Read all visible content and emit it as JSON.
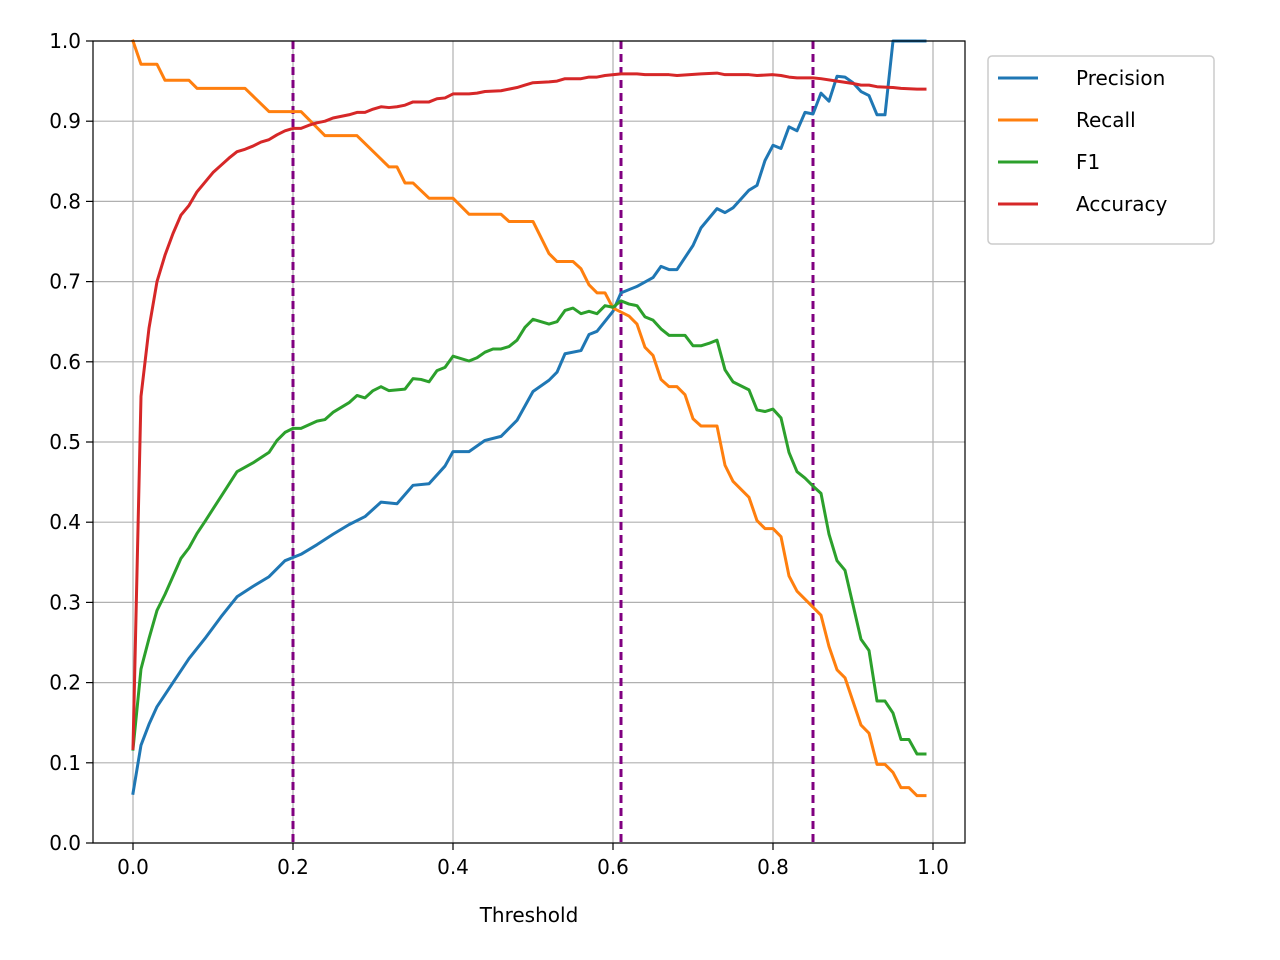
{
  "chart_data": {
    "type": "line",
    "title": "",
    "xlabel": "Threshold",
    "ylabel": "",
    "xlim": [
      -0.05,
      1.04
    ],
    "ylim": [
      0.0,
      1.0
    ],
    "grid": true,
    "legend_position": "outside-top-right",
    "x_ticks": [
      0.0,
      0.2,
      0.4,
      0.6,
      0.8,
      1.0
    ],
    "x_tick_labels": [
      "0.0",
      "0.2",
      "0.4",
      "0.6",
      "0.8",
      "1.0"
    ],
    "y_ticks": [
      0.0,
      0.1,
      0.2,
      0.3,
      0.4,
      0.5,
      0.6,
      0.7,
      0.8,
      0.9,
      1.0
    ],
    "y_tick_labels": [
      "0.0",
      "0.1",
      "0.2",
      "0.3",
      "0.4",
      "0.5",
      "0.6",
      "0.7",
      "0.8",
      "0.9",
      "1.0"
    ],
    "vertical_lines": {
      "x": [
        0.2,
        0.61,
        0.85
      ],
      "color": "#800080",
      "style": "dashed"
    },
    "series": [
      {
        "name": "Precision",
        "color": "#1f77b4",
        "points": [
          [
            0.0,
            0.062
          ],
          [
            0.01,
            0.122
          ],
          [
            0.02,
            0.148
          ],
          [
            0.03,
            0.17
          ],
          [
            0.05,
            0.2
          ],
          [
            0.07,
            0.23
          ],
          [
            0.09,
            0.255
          ],
          [
            0.11,
            0.282
          ],
          [
            0.13,
            0.307
          ],
          [
            0.15,
            0.32
          ],
          [
            0.17,
            0.332
          ],
          [
            0.19,
            0.352
          ],
          [
            0.21,
            0.36
          ],
          [
            0.23,
            0.372
          ],
          [
            0.25,
            0.385
          ],
          [
            0.27,
            0.397
          ],
          [
            0.29,
            0.407
          ],
          [
            0.31,
            0.425
          ],
          [
            0.33,
            0.423
          ],
          [
            0.35,
            0.446
          ],
          [
            0.37,
            0.448
          ],
          [
            0.39,
            0.47
          ],
          [
            0.4,
            0.488
          ],
          [
            0.42,
            0.488
          ],
          [
            0.44,
            0.502
          ],
          [
            0.46,
            0.507
          ],
          [
            0.48,
            0.527
          ],
          [
            0.5,
            0.563
          ],
          [
            0.52,
            0.577
          ],
          [
            0.53,
            0.587
          ],
          [
            0.54,
            0.61
          ],
          [
            0.56,
            0.614
          ],
          [
            0.57,
            0.634
          ],
          [
            0.58,
            0.638
          ],
          [
            0.6,
            0.663
          ],
          [
            0.61,
            0.686
          ],
          [
            0.63,
            0.694
          ],
          [
            0.65,
            0.705
          ],
          [
            0.66,
            0.719
          ],
          [
            0.67,
            0.715
          ],
          [
            0.68,
            0.715
          ],
          [
            0.7,
            0.745
          ],
          [
            0.71,
            0.767
          ],
          [
            0.73,
            0.791
          ],
          [
            0.74,
            0.786
          ],
          [
            0.75,
            0.792
          ],
          [
            0.77,
            0.814
          ],
          [
            0.78,
            0.82
          ],
          [
            0.79,
            0.851
          ],
          [
            0.8,
            0.87
          ],
          [
            0.81,
            0.866
          ],
          [
            0.82,
            0.893
          ],
          [
            0.83,
            0.888
          ],
          [
            0.84,
            0.911
          ],
          [
            0.85,
            0.909
          ],
          [
            0.86,
            0.935
          ],
          [
            0.87,
            0.925
          ],
          [
            0.88,
            0.956
          ],
          [
            0.89,
            0.955
          ],
          [
            0.9,
            0.948
          ],
          [
            0.91,
            0.937
          ],
          [
            0.92,
            0.932
          ],
          [
            0.93,
            0.908
          ],
          [
            0.94,
            0.908
          ],
          [
            0.95,
            1.0
          ],
          [
            0.96,
            1.0
          ],
          [
            0.97,
            1.0
          ],
          [
            0.98,
            1.0
          ],
          [
            0.99,
            1.0
          ]
        ]
      },
      {
        "name": "Recall",
        "color": "#ff7f0e",
        "points": [
          [
            0.0,
            1.0
          ],
          [
            0.01,
            0.971
          ],
          [
            0.03,
            0.971
          ],
          [
            0.04,
            0.951
          ],
          [
            0.07,
            0.951
          ],
          [
            0.08,
            0.941
          ],
          [
            0.14,
            0.941
          ],
          [
            0.17,
            0.912
          ],
          [
            0.21,
            0.912
          ],
          [
            0.24,
            0.882
          ],
          [
            0.28,
            0.882
          ],
          [
            0.32,
            0.843
          ],
          [
            0.33,
            0.843
          ],
          [
            0.34,
            0.823
          ],
          [
            0.35,
            0.823
          ],
          [
            0.37,
            0.804
          ],
          [
            0.4,
            0.804
          ],
          [
            0.42,
            0.784
          ],
          [
            0.46,
            0.784
          ],
          [
            0.47,
            0.775
          ],
          [
            0.5,
            0.775
          ],
          [
            0.52,
            0.735
          ],
          [
            0.53,
            0.725
          ],
          [
            0.55,
            0.725
          ],
          [
            0.56,
            0.716
          ],
          [
            0.57,
            0.696
          ],
          [
            0.58,
            0.686
          ],
          [
            0.59,
            0.686
          ],
          [
            0.6,
            0.667
          ],
          [
            0.62,
            0.657
          ],
          [
            0.63,
            0.647
          ],
          [
            0.64,
            0.618
          ],
          [
            0.65,
            0.608
          ],
          [
            0.66,
            0.578
          ],
          [
            0.67,
            0.569
          ],
          [
            0.68,
            0.569
          ],
          [
            0.69,
            0.559
          ],
          [
            0.7,
            0.529
          ],
          [
            0.71,
            0.52
          ],
          [
            0.73,
            0.52
          ],
          [
            0.74,
            0.471
          ],
          [
            0.75,
            0.451
          ],
          [
            0.77,
            0.431
          ],
          [
            0.78,
            0.402
          ],
          [
            0.79,
            0.392
          ],
          [
            0.8,
            0.392
          ],
          [
            0.81,
            0.382
          ],
          [
            0.82,
            0.333
          ],
          [
            0.83,
            0.314
          ],
          [
            0.85,
            0.294
          ],
          [
            0.86,
            0.284
          ],
          [
            0.87,
            0.245
          ],
          [
            0.88,
            0.216
          ],
          [
            0.89,
            0.206
          ],
          [
            0.91,
            0.147
          ],
          [
            0.92,
            0.137
          ],
          [
            0.93,
            0.098
          ],
          [
            0.94,
            0.098
          ],
          [
            0.95,
            0.088
          ],
          [
            0.96,
            0.069
          ],
          [
            0.97,
            0.069
          ],
          [
            0.98,
            0.059
          ],
          [
            0.99,
            0.059
          ]
        ]
      },
      {
        "name": "F1",
        "color": "#2ca02c",
        "points": [
          [
            0.0,
            0.117
          ],
          [
            0.01,
            0.217
          ],
          [
            0.02,
            0.255
          ],
          [
            0.03,
            0.29
          ],
          [
            0.04,
            0.31
          ],
          [
            0.06,
            0.355
          ],
          [
            0.07,
            0.368
          ],
          [
            0.08,
            0.386
          ],
          [
            0.09,
            0.401
          ],
          [
            0.11,
            0.432
          ],
          [
            0.13,
            0.463
          ],
          [
            0.15,
            0.474
          ],
          [
            0.17,
            0.487
          ],
          [
            0.18,
            0.502
          ],
          [
            0.19,
            0.512
          ],
          [
            0.2,
            0.517
          ],
          [
            0.21,
            0.517
          ],
          [
            0.23,
            0.526
          ],
          [
            0.24,
            0.528
          ],
          [
            0.25,
            0.537
          ],
          [
            0.27,
            0.549
          ],
          [
            0.28,
            0.558
          ],
          [
            0.29,
            0.555
          ],
          [
            0.3,
            0.564
          ],
          [
            0.31,
            0.569
          ],
          [
            0.32,
            0.564
          ],
          [
            0.34,
            0.566
          ],
          [
            0.35,
            0.579
          ],
          [
            0.36,
            0.578
          ],
          [
            0.37,
            0.575
          ],
          [
            0.38,
            0.589
          ],
          [
            0.39,
            0.593
          ],
          [
            0.4,
            0.607
          ],
          [
            0.42,
            0.601
          ],
          [
            0.43,
            0.605
          ],
          [
            0.44,
            0.612
          ],
          [
            0.45,
            0.616
          ],
          [
            0.46,
            0.616
          ],
          [
            0.47,
            0.619
          ],
          [
            0.48,
            0.627
          ],
          [
            0.49,
            0.643
          ],
          [
            0.5,
            0.653
          ],
          [
            0.52,
            0.647
          ],
          [
            0.53,
            0.65
          ],
          [
            0.54,
            0.664
          ],
          [
            0.55,
            0.667
          ],
          [
            0.56,
            0.66
          ],
          [
            0.57,
            0.663
          ],
          [
            0.58,
            0.66
          ],
          [
            0.59,
            0.67
          ],
          [
            0.6,
            0.668
          ],
          [
            0.61,
            0.676
          ],
          [
            0.62,
            0.672
          ],
          [
            0.63,
            0.67
          ],
          [
            0.64,
            0.656
          ],
          [
            0.65,
            0.652
          ],
          [
            0.66,
            0.641
          ],
          [
            0.67,
            0.633
          ],
          [
            0.68,
            0.633
          ],
          [
            0.69,
            0.633
          ],
          [
            0.7,
            0.62
          ],
          [
            0.71,
            0.62
          ],
          [
            0.72,
            0.623
          ],
          [
            0.73,
            0.627
          ],
          [
            0.74,
            0.59
          ],
          [
            0.75,
            0.575
          ],
          [
            0.77,
            0.565
          ],
          [
            0.78,
            0.54
          ],
          [
            0.79,
            0.538
          ],
          [
            0.8,
            0.541
          ],
          [
            0.81,
            0.53
          ],
          [
            0.82,
            0.487
          ],
          [
            0.83,
            0.463
          ],
          [
            0.84,
            0.455
          ],
          [
            0.85,
            0.445
          ],
          [
            0.86,
            0.436
          ],
          [
            0.87,
            0.385
          ],
          [
            0.88,
            0.352
          ],
          [
            0.89,
            0.34
          ],
          [
            0.91,
            0.254
          ],
          [
            0.92,
            0.24
          ],
          [
            0.93,
            0.177
          ],
          [
            0.94,
            0.177
          ],
          [
            0.95,
            0.162
          ],
          [
            0.96,
            0.129
          ],
          [
            0.97,
            0.129
          ],
          [
            0.98,
            0.111
          ],
          [
            0.99,
            0.111
          ]
        ]
      },
      {
        "name": "Accuracy",
        "color": "#d62728",
        "points": [
          [
            0.0,
            0.118
          ],
          [
            0.01,
            0.557
          ],
          [
            0.02,
            0.642
          ],
          [
            0.03,
            0.7
          ],
          [
            0.04,
            0.733
          ],
          [
            0.05,
            0.76
          ],
          [
            0.06,
            0.783
          ],
          [
            0.07,
            0.795
          ],
          [
            0.08,
            0.812
          ],
          [
            0.09,
            0.824
          ],
          [
            0.1,
            0.836
          ],
          [
            0.11,
            0.845
          ],
          [
            0.12,
            0.854
          ],
          [
            0.13,
            0.862
          ],
          [
            0.14,
            0.865
          ],
          [
            0.15,
            0.869
          ],
          [
            0.16,
            0.874
          ],
          [
            0.17,
            0.877
          ],
          [
            0.18,
            0.883
          ],
          [
            0.19,
            0.888
          ],
          [
            0.2,
            0.891
          ],
          [
            0.21,
            0.891
          ],
          [
            0.22,
            0.895
          ],
          [
            0.23,
            0.898
          ],
          [
            0.24,
            0.9
          ],
          [
            0.25,
            0.904
          ],
          [
            0.27,
            0.908
          ],
          [
            0.28,
            0.911
          ],
          [
            0.29,
            0.911
          ],
          [
            0.3,
            0.915
          ],
          [
            0.31,
            0.918
          ],
          [
            0.32,
            0.917
          ],
          [
            0.33,
            0.918
          ],
          [
            0.34,
            0.92
          ],
          [
            0.35,
            0.924
          ],
          [
            0.37,
            0.924
          ],
          [
            0.38,
            0.928
          ],
          [
            0.39,
            0.929
          ],
          [
            0.4,
            0.934
          ],
          [
            0.42,
            0.934
          ],
          [
            0.43,
            0.935
          ],
          [
            0.44,
            0.937
          ],
          [
            0.46,
            0.938
          ],
          [
            0.47,
            0.94
          ],
          [
            0.48,
            0.942
          ],
          [
            0.49,
            0.945
          ],
          [
            0.5,
            0.948
          ],
          [
            0.52,
            0.949
          ],
          [
            0.53,
            0.95
          ],
          [
            0.54,
            0.953
          ],
          [
            0.56,
            0.953
          ],
          [
            0.57,
            0.955
          ],
          [
            0.58,
            0.955
          ],
          [
            0.59,
            0.957
          ],
          [
            0.61,
            0.959
          ],
          [
            0.63,
            0.959
          ],
          [
            0.64,
            0.958
          ],
          [
            0.67,
            0.958
          ],
          [
            0.68,
            0.957
          ],
          [
            0.71,
            0.959
          ],
          [
            0.73,
            0.96
          ],
          [
            0.74,
            0.958
          ],
          [
            0.77,
            0.958
          ],
          [
            0.78,
            0.957
          ],
          [
            0.8,
            0.958
          ],
          [
            0.81,
            0.957
          ],
          [
            0.82,
            0.955
          ],
          [
            0.83,
            0.954
          ],
          [
            0.85,
            0.954
          ],
          [
            0.86,
            0.953
          ],
          [
            0.88,
            0.95
          ],
          [
            0.9,
            0.947
          ],
          [
            0.91,
            0.945
          ],
          [
            0.92,
            0.945
          ],
          [
            0.93,
            0.943
          ],
          [
            0.95,
            0.942
          ],
          [
            0.96,
            0.941
          ],
          [
            0.98,
            0.94
          ],
          [
            0.99,
            0.94
          ]
        ]
      }
    ]
  }
}
